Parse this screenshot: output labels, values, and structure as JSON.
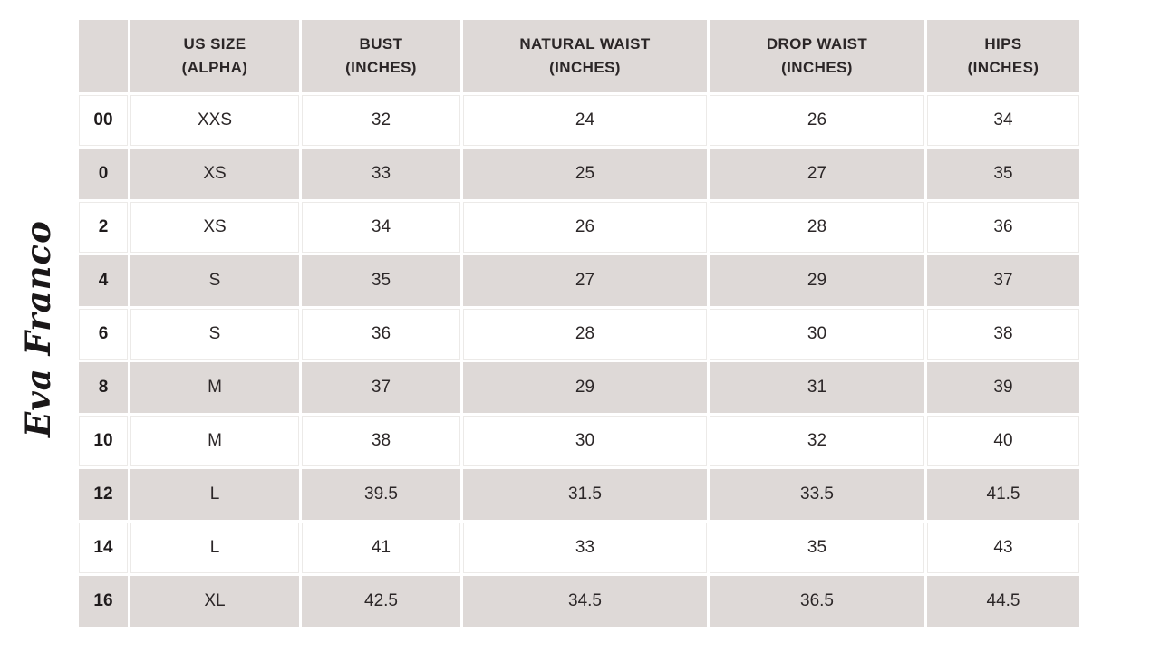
{
  "brand": {
    "logo_text": "Eva Franco"
  },
  "colors": {
    "header_bg": "#ded9d7",
    "stripe_row_bg": "#ded9d7",
    "white_row_border": "#eceae8",
    "text": "#2b2627"
  },
  "table": {
    "headers": [
      "",
      "US SIZE\n(ALPHA)",
      "BUST\n(INCHES)",
      "NATURAL WAIST\n(INCHES)",
      "DROP WAIST\n(INCHES)",
      "HIPS\n(INCHES)"
    ],
    "row_keys": [
      "us",
      "alpha",
      "bust",
      "natural_waist",
      "drop_waist",
      "hips"
    ],
    "rows": [
      {
        "us": "00",
        "alpha": "XXS",
        "bust": "32",
        "natural_waist": "24",
        "drop_waist": "26",
        "hips": "34"
      },
      {
        "us": "0",
        "alpha": "XS",
        "bust": "33",
        "natural_waist": "25",
        "drop_waist": "27",
        "hips": "35"
      },
      {
        "us": "2",
        "alpha": "XS",
        "bust": "34",
        "natural_waist": "26",
        "drop_waist": "28",
        "hips": "36"
      },
      {
        "us": "4",
        "alpha": "S",
        "bust": "35",
        "natural_waist": "27",
        "drop_waist": "29",
        "hips": "37"
      },
      {
        "us": "6",
        "alpha": "S",
        "bust": "36",
        "natural_waist": "28",
        "drop_waist": "30",
        "hips": "38"
      },
      {
        "us": "8",
        "alpha": "M",
        "bust": "37",
        "natural_waist": "29",
        "drop_waist": "31",
        "hips": "39"
      },
      {
        "us": "10",
        "alpha": "M",
        "bust": "38",
        "natural_waist": "30",
        "drop_waist": "32",
        "hips": "40"
      },
      {
        "us": "12",
        "alpha": "L",
        "bust": "39.5",
        "natural_waist": "31.5",
        "drop_waist": "33.5",
        "hips": "41.5"
      },
      {
        "us": "14",
        "alpha": "L",
        "bust": "41",
        "natural_waist": "33",
        "drop_waist": "35",
        "hips": "43"
      },
      {
        "us": "16",
        "alpha": "XL",
        "bust": "42.5",
        "natural_waist": "34.5",
        "drop_waist": "36.5",
        "hips": "44.5"
      }
    ]
  }
}
